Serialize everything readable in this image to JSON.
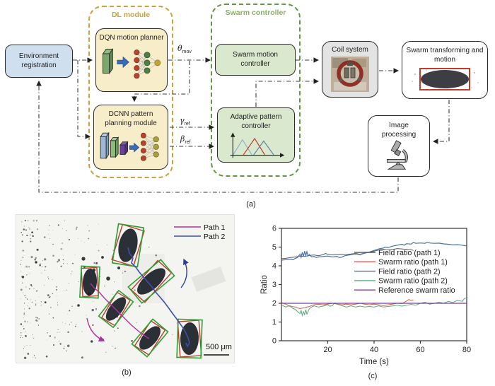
{
  "figure": {
    "captions": {
      "a": "(a)",
      "b": "(b)",
      "c": "(c)"
    }
  },
  "panel_a": {
    "env": {
      "label": "Environment registration",
      "fill": "#cfdfee"
    },
    "dl_module": {
      "title": "DL module",
      "accent": "#c9a23c",
      "box_fill": "#f8edc9",
      "dqn_label": "DQN motion planner",
      "dcnn_label": "DCNN pattern planning module"
    },
    "swarm_controller": {
      "title": "Swarm controller",
      "accent": "#669547",
      "title_color": "#8fae6e",
      "box_fill": "#dae8cd",
      "motion_label": "Swarm motion controller",
      "adaptive_label": "Adaptive pattern controller"
    },
    "coil": {
      "label": "Coil system",
      "fill": "#e3e3e3"
    },
    "transform": {
      "label": "Swarm transforming and motion",
      "highlight": "#c23b2e"
    },
    "image_processing": {
      "label": "Image processing"
    },
    "signals": {
      "theta_base": "θ",
      "theta_sub": "mov",
      "gamma_base": "γ",
      "gamma_sub": "ref",
      "beta_base": "β",
      "beta_sub": "ref"
    }
  },
  "panel_b": {
    "legend": [
      {
        "label": "Path 1",
        "color": "#a8359b"
      },
      {
        "label": "Path 2",
        "color": "#3c4fae"
      }
    ],
    "scale_label": "500 μm",
    "colors": {
      "green_box": "#2f9e2f",
      "red_box": "#c0392b"
    }
  },
  "chart_data": {
    "type": "line",
    "title": "",
    "xlabel": "Time (s)",
    "ylabel": "Ratio",
    "xlim": [
      0,
      80
    ],
    "ylim": [
      0,
      6
    ],
    "xticks": [
      20,
      40,
      60,
      80
    ],
    "yticks": [
      0,
      1,
      2,
      3,
      4,
      5,
      6
    ],
    "grid": false,
    "legend_position": "center-right",
    "series": [
      {
        "name": "Field ratio (path 1)",
        "color": "#5a5a5a",
        "width": 1.0,
        "points": [
          [
            0,
            4.38
          ],
          [
            2,
            4.4
          ],
          [
            4,
            4.44
          ],
          [
            6,
            4.47
          ],
          [
            8,
            4.52
          ],
          [
            10,
            4.5
          ],
          [
            12,
            4.55
          ],
          [
            14,
            4.58
          ],
          [
            16,
            4.54
          ],
          [
            18,
            4.6
          ],
          [
            19,
            4.66
          ],
          [
            20,
            4.62
          ],
          [
            22,
            4.58
          ],
          [
            24,
            4.6
          ],
          [
            26,
            4.62
          ],
          [
            28,
            4.6
          ],
          [
            30,
            4.63
          ],
          [
            32,
            4.66
          ],
          [
            34,
            4.62
          ],
          [
            36,
            4.68
          ],
          [
            38,
            4.72
          ],
          [
            40,
            4.78
          ],
          [
            42,
            4.84
          ],
          [
            44,
            4.88
          ],
          [
            46,
            4.85
          ],
          [
            48,
            4.87
          ],
          [
            50,
            4.92
          ],
          [
            52,
            4.9
          ],
          [
            54,
            4.87
          ],
          [
            56,
            4.86
          ],
          [
            57,
            4.82
          ]
        ]
      },
      {
        "name": "Swarm ratio (path 1)",
        "color": "#d05c5c",
        "width": 1.0,
        "points": [
          [
            0,
            2.05
          ],
          [
            1,
            1.98
          ],
          [
            2,
            1.95
          ],
          [
            3,
            1.88
          ],
          [
            4,
            1.85
          ],
          [
            5,
            1.82
          ],
          [
            6,
            1.8
          ],
          [
            7,
            1.75
          ],
          [
            8,
            1.72
          ],
          [
            9,
            1.74
          ],
          [
            10,
            1.76
          ],
          [
            11,
            1.8
          ],
          [
            12,
            1.82
          ],
          [
            13,
            1.88
          ],
          [
            14,
            1.92
          ],
          [
            16,
            1.95
          ],
          [
            18,
            1.92
          ],
          [
            20,
            1.96
          ],
          [
            22,
            2.0
          ],
          [
            24,
            1.96
          ],
          [
            26,
            1.92
          ],
          [
            28,
            1.96
          ],
          [
            30,
            1.92
          ],
          [
            32,
            1.95
          ],
          [
            34,
            2.0
          ],
          [
            36,
            1.95
          ],
          [
            38,
            1.92
          ],
          [
            40,
            1.96
          ],
          [
            42,
            1.92
          ],
          [
            44,
            1.88
          ],
          [
            46,
            1.92
          ],
          [
            48,
            1.96
          ],
          [
            50,
            2.0
          ],
          [
            52,
            1.98
          ],
          [
            54,
            2.12
          ],
          [
            55,
            2.2
          ],
          [
            56,
            2.15
          ],
          [
            57,
            2.18
          ]
        ]
      },
      {
        "name": "Field ratio (path 2)",
        "color": "#4a6fa5",
        "width": 1.2,
        "points": [
          [
            0,
            4.3
          ],
          [
            2,
            4.33
          ],
          [
            4,
            4.36
          ],
          [
            5,
            4.32
          ],
          [
            6,
            4.4
          ],
          [
            7,
            4.45
          ],
          [
            8,
            4.62
          ],
          [
            8.5,
            4.45
          ],
          [
            9,
            4.72
          ],
          [
            9.5,
            4.5
          ],
          [
            10,
            4.78
          ],
          [
            10.5,
            4.55
          ],
          [
            11,
            4.75
          ],
          [
            11.5,
            4.52
          ],
          [
            12,
            4.6
          ],
          [
            13,
            4.48
          ],
          [
            14,
            4.5
          ],
          [
            15,
            4.45
          ],
          [
            16,
            4.47
          ],
          [
            18,
            4.5
          ],
          [
            20,
            4.52
          ],
          [
            22,
            4.47
          ],
          [
            24,
            4.5
          ],
          [
            25,
            4.44
          ],
          [
            26,
            4.46
          ],
          [
            27,
            4.52
          ],
          [
            28,
            4.55
          ],
          [
            30,
            4.6
          ],
          [
            32,
            4.63
          ],
          [
            34,
            4.6
          ],
          [
            36,
            4.68
          ],
          [
            38,
            4.74
          ],
          [
            40,
            4.82
          ],
          [
            42,
            4.9
          ],
          [
            44,
            4.95
          ],
          [
            45,
            5.0
          ],
          [
            46,
            4.97
          ],
          [
            48,
            5.05
          ],
          [
            50,
            5.1
          ],
          [
            52,
            5.15
          ],
          [
            53,
            5.1
          ],
          [
            54,
            5.18
          ],
          [
            56,
            5.16
          ],
          [
            57,
            5.25
          ],
          [
            58,
            5.2
          ],
          [
            60,
            5.22
          ],
          [
            62,
            5.2
          ],
          [
            63,
            5.26
          ],
          [
            64,
            5.22
          ],
          [
            66,
            5.2
          ],
          [
            68,
            5.21
          ],
          [
            70,
            5.17
          ],
          [
            72,
            5.15
          ],
          [
            74,
            5.12
          ],
          [
            76,
            5.13
          ],
          [
            78,
            5.1
          ],
          [
            80,
            5.06
          ]
        ]
      },
      {
        "name": "Swarm ratio (path 2)",
        "color": "#5aa878",
        "width": 1.0,
        "points": [
          [
            0,
            1.92
          ],
          [
            1,
            1.85
          ],
          [
            2,
            1.8
          ],
          [
            3,
            1.86
          ],
          [
            4,
            1.82
          ],
          [
            5,
            1.72
          ],
          [
            6,
            1.68
          ],
          [
            7,
            1.55
          ],
          [
            8,
            1.45
          ],
          [
            8.5,
            1.62
          ],
          [
            9,
            1.35
          ],
          [
            9.5,
            1.55
          ],
          [
            10,
            1.4
          ],
          [
            10.5,
            1.65
          ],
          [
            11,
            1.42
          ],
          [
            12,
            1.7
          ],
          [
            13,
            1.8
          ],
          [
            14,
            1.86
          ],
          [
            16,
            1.8
          ],
          [
            18,
            1.85
          ],
          [
            20,
            1.92
          ],
          [
            21,
            1.84
          ],
          [
            22,
            1.88
          ],
          [
            23,
            2.02
          ],
          [
            24,
            1.95
          ],
          [
            26,
            1.88
          ],
          [
            28,
            1.8
          ],
          [
            30,
            1.86
          ],
          [
            32,
            1.8
          ],
          [
            34,
            1.85
          ],
          [
            36,
            1.8
          ],
          [
            38,
            1.83
          ],
          [
            40,
            1.8
          ],
          [
            42,
            1.86
          ],
          [
            44,
            1.8
          ],
          [
            46,
            1.83
          ],
          [
            48,
            1.86
          ],
          [
            50,
            1.9
          ],
          [
            52,
            1.85
          ],
          [
            54,
            1.9
          ],
          [
            56,
            1.94
          ],
          [
            58,
            1.9
          ],
          [
            60,
            2.0
          ],
          [
            62,
            2.06
          ],
          [
            64,
            1.95
          ],
          [
            66,
            2.0
          ],
          [
            68,
            2.06
          ],
          [
            70,
            2.0
          ],
          [
            72,
            2.1
          ],
          [
            74,
            2.04
          ],
          [
            76,
            2.16
          ],
          [
            78,
            2.1
          ],
          [
            79,
            2.25
          ],
          [
            80,
            2.3
          ]
        ]
      },
      {
        "name": "Reference swarm ratio",
        "color": "#7a3f98",
        "width": 1.2,
        "points": [
          [
            0,
            2.0
          ],
          [
            80,
            2.0
          ]
        ]
      }
    ]
  }
}
